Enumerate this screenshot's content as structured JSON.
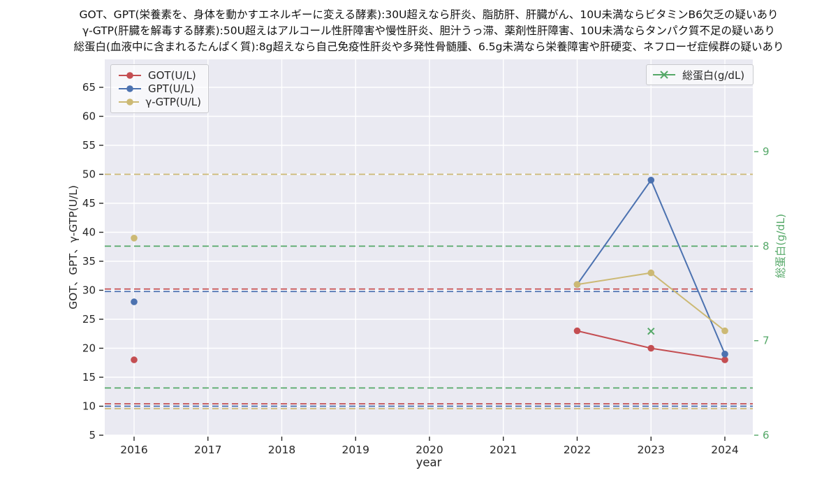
{
  "title": {
    "lines": [
      "GOT、GPT(栄養素を、身体を動かすエネルギーに変える酵素):30U超えなら肝炎、脂肪肝、肝臓がん、10U未満ならビタミンB6欠乏の疑いあり",
      "γ-GTP(肝臓を解毒する酵素):50U超えはアルコール性肝障害や慢性肝炎、胆汁うっ滞、薬剤性肝障害、10U未満ならタンパク質不足の疑いあり",
      "総蛋白(血液中に含まれるたんぱく質):8g超えなら自己免疫性肝炎や多発性骨髄腫、6.5g未満なら栄養障害や肝硬変、ネフローゼ症候群の疑いあり"
    ]
  },
  "colors": {
    "got_red": "#c44e52",
    "gpt_blue": "#4c72b0",
    "ggtp_yellow": "#ccb974",
    "protein_green": "#55a868",
    "plot_background": "#eaeaf2",
    "grid_line": "#ffffff",
    "tick_text": "#262626"
  },
  "chart_data": {
    "type": "line",
    "xlabel": "year",
    "ylabel_left": "GOT、GPT、γ-GTP(U/L)",
    "ylabel_right": "総蛋白(g/dL)",
    "x_ticks": [
      2016,
      2017,
      2018,
      2019,
      2020,
      2021,
      2022,
      2023,
      2024
    ],
    "y_left": {
      "ticks": [
        5,
        10,
        15,
        20,
        25,
        30,
        35,
        40,
        45,
        50,
        55,
        60,
        65
      ],
      "range": [
        5,
        70
      ]
    },
    "y_right": {
      "ticks": [
        6,
        7,
        8,
        9
      ],
      "range": [
        6,
        9.98
      ]
    },
    "grid": true,
    "series": [
      {
        "name": "GOT(U/L)",
        "color": "#c44e52",
        "marker": "circle",
        "axis": "left",
        "points": [
          {
            "x": 2016,
            "y": 18
          },
          {
            "x": 2022,
            "y": 23
          },
          {
            "x": 2023,
            "y": 20
          },
          {
            "x": 2024,
            "y": 18
          }
        ]
      },
      {
        "name": "GPT(U/L)",
        "color": "#4c72b0",
        "marker": "circle",
        "axis": "left",
        "points": [
          {
            "x": 2016,
            "y": 28
          },
          {
            "x": 2022,
            "y": 31
          },
          {
            "x": 2023,
            "y": 49
          },
          {
            "x": 2024,
            "y": 19
          }
        ]
      },
      {
        "name": "γ-GTP(U/L)",
        "color": "#ccb974",
        "marker": "circle",
        "axis": "left",
        "points": [
          {
            "x": 2016,
            "y": 39
          },
          {
            "x": 2022,
            "y": 31
          },
          {
            "x": 2023,
            "y": 33
          },
          {
            "x": 2024,
            "y": 23
          }
        ]
      },
      {
        "name": "総蛋白(g/dL)",
        "color": "#55a868",
        "marker": "x",
        "axis": "right",
        "points": [
          {
            "x": 2023,
            "y": 7.1
          }
        ]
      }
    ],
    "reference_lines": [
      {
        "axis": "left",
        "value": 30,
        "color": "#c44e52",
        "style": "dashed"
      },
      {
        "axis": "left",
        "value": 30,
        "color": "#4c72b0",
        "style": "dashed"
      },
      {
        "axis": "left",
        "value": 50,
        "color": "#ccb974",
        "style": "dashed"
      },
      {
        "axis": "left",
        "value": 10,
        "color": "#c44e52",
        "style": "dashed"
      },
      {
        "axis": "left",
        "value": 10,
        "color": "#4c72b0",
        "style": "dashed"
      },
      {
        "axis": "left",
        "value": 10,
        "color": "#ccb974",
        "style": "dashed"
      },
      {
        "axis": "right",
        "value": 8,
        "color": "#55a868",
        "style": "dashed"
      },
      {
        "axis": "right",
        "value": 6.5,
        "color": "#55a868",
        "style": "dashed"
      }
    ],
    "legends": [
      {
        "position": "upper left",
        "entries": [
          {
            "label": "GOT(U/L)",
            "color": "#c44e52",
            "marker": "circle"
          },
          {
            "label": "GPT(U/L)",
            "color": "#4c72b0",
            "marker": "circle"
          },
          {
            "label": "γ-GTP(U/L)",
            "color": "#ccb974",
            "marker": "circle"
          }
        ]
      },
      {
        "position": "upper right",
        "entries": [
          {
            "label": "総蛋白(g/dL)",
            "color": "#55a868",
            "marker": "x"
          }
        ]
      }
    ]
  }
}
